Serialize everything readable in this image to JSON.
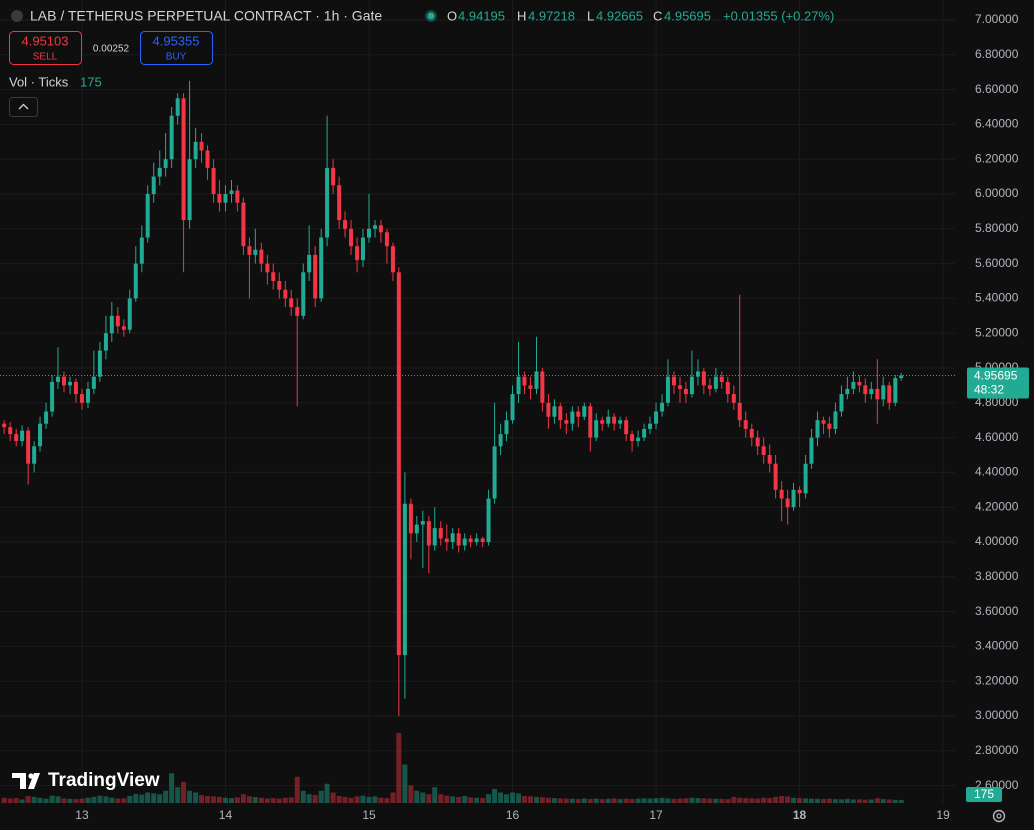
{
  "chart_data": {
    "type": "candlestick",
    "title": "LAB / TETHERUS PERPETUAL CONTRACT · 1h · Gate",
    "legend_labels": [
      "O",
      "H",
      "L",
      "C"
    ],
    "change": "+0.01355 (+0.27%)",
    "sell_price": "4.95103",
    "sell_label": "SELL",
    "spread": "0.00252",
    "buy_price": "4.95355",
    "buy_label": "BUY",
    "volume_title": "Vol · Ticks",
    "countdown": "48:32",
    "watermark": "TradingView",
    "up_color": "#22ab94",
    "down_color": "#f23645",
    "grid": true,
    "xlim": [
      12.429,
      19.083
    ],
    "xticks": [
      13,
      14,
      15,
      16,
      17,
      18,
      19
    ],
    "ylim": [
      2.5,
      7.115
    ],
    "yticks": [
      {
        "value": 2.6,
        "label": "2.60000"
      },
      {
        "value": 2.8,
        "label": "2.80000"
      },
      {
        "value": 3.0,
        "label": "3.00000"
      },
      {
        "value": 3.2,
        "label": "3.20000"
      },
      {
        "value": 3.4,
        "label": "3.40000"
      },
      {
        "value": 3.6,
        "label": "3.60000"
      },
      {
        "value": 3.8,
        "label": "3.80000"
      },
      {
        "value": 4.0,
        "label": "4.00000"
      },
      {
        "value": 4.2,
        "label": "4.20000"
      },
      {
        "value": 4.4,
        "label": "4.40000"
      },
      {
        "value": 4.6,
        "label": "4.60000"
      },
      {
        "value": 4.8,
        "label": "4.80000"
      },
      {
        "value": 5.0,
        "label": "5.00000"
      },
      {
        "value": 5.2,
        "label": "5.20000"
      },
      {
        "value": 5.4,
        "label": "5.40000"
      },
      {
        "value": 5.6,
        "label": "5.60000"
      },
      {
        "value": 5.8,
        "label": "5.80000"
      },
      {
        "value": 6.0,
        "label": "6.00000"
      },
      {
        "value": 6.2,
        "label": "6.20000"
      },
      {
        "value": 6.4,
        "label": "6.40000"
      },
      {
        "value": 6.6,
        "label": "6.60000"
      },
      {
        "value": 6.8,
        "label": "6.80000"
      },
      {
        "value": 7.0,
        "label": "7.00000"
      }
    ],
    "x": [
      12.458,
      12.5,
      12.542,
      12.583,
      12.625,
      12.667,
      12.708,
      12.75,
      12.792,
      12.833,
      12.875,
      12.917,
      12.958,
      13,
      13.042,
      13.083,
      13.125,
      13.167,
      13.208,
      13.25,
      13.292,
      13.333,
      13.375,
      13.417,
      13.458,
      13.5,
      13.542,
      13.583,
      13.625,
      13.667,
      13.708,
      13.75,
      13.792,
      13.833,
      13.875,
      13.917,
      13.958,
      14,
      14.042,
      14.083,
      14.125,
      14.167,
      14.208,
      14.25,
      14.292,
      14.333,
      14.375,
      14.417,
      14.458,
      14.5,
      14.542,
      14.583,
      14.625,
      14.667,
      14.708,
      14.75,
      14.792,
      14.833,
      14.875,
      14.917,
      14.958,
      15,
      15.042,
      15.083,
      15.125,
      15.167,
      15.208,
      15.25,
      15.292,
      15.333,
      15.375,
      15.417,
      15.458,
      15.5,
      15.542,
      15.583,
      15.625,
      15.667,
      15.708,
      15.75,
      15.792,
      15.833,
      15.875,
      15.917,
      15.958,
      16,
      16.042,
      16.083,
      16.125,
      16.167,
      16.208,
      16.25,
      16.292,
      16.333,
      16.375,
      16.417,
      16.458,
      16.5,
      16.542,
      16.583,
      16.625,
      16.667,
      16.708,
      16.75,
      16.792,
      16.833,
      16.875,
      16.917,
      16.958,
      17,
      17.042,
      17.083,
      17.125,
      17.167,
      17.208,
      17.25,
      17.292,
      17.333,
      17.375,
      17.417,
      17.458,
      17.5,
      17.542,
      17.583,
      17.625,
      17.667,
      17.708,
      17.75,
      17.792,
      17.833,
      17.875,
      17.917,
      17.958,
      18,
      18.042,
      18.083,
      18.125,
      18.167,
      18.208,
      18.25,
      18.292,
      18.333,
      18.375,
      18.417,
      18.458,
      18.5,
      18.542,
      18.583,
      18.625,
      18.667,
      18.708
    ],
    "open": [
      4.68,
      4.66,
      4.62,
      4.58,
      4.64,
      4.45,
      4.55,
      4.68,
      4.75,
      4.92,
      4.95,
      4.9,
      4.92,
      4.85,
      4.8,
      4.88,
      4.95,
      5.1,
      5.2,
      5.3,
      5.24,
      5.22,
      5.4,
      5.6,
      5.75,
      6.0,
      6.1,
      6.15,
      6.2,
      6.45,
      6.55,
      5.85,
      6.2,
      6.3,
      6.25,
      6.15,
      6.0,
      5.95,
      6.0,
      6.02,
      5.95,
      5.7,
      5.65,
      5.68,
      5.6,
      5.55,
      5.5,
      5.45,
      5.4,
      5.35,
      5.3,
      5.55,
      5.65,
      5.4,
      5.75,
      6.15,
      6.05,
      5.85,
      5.8,
      5.7,
      5.62,
      5.75,
      5.8,
      5.82,
      5.78,
      5.7,
      5.55,
      3.35,
      4.22,
      4.05,
      4.1,
      4.12,
      3.98,
      4.08,
      4.02,
      4.0,
      4.05,
      3.98,
      4.02,
      4.0,
      4.02,
      4.0,
      4.25,
      4.55,
      4.62,
      4.7,
      4.85,
      4.95,
      4.9,
      4.88,
      4.98,
      4.8,
      4.72,
      4.78,
      4.7,
      4.68,
      4.75,
      4.72,
      4.78,
      4.6,
      4.7,
      4.68,
      4.72,
      4.68,
      4.7,
      4.62,
      4.58,
      4.6,
      4.65,
      4.68,
      4.75,
      4.8,
      4.95,
      4.9,
      4.88,
      4.85,
      4.95,
      4.98,
      4.9,
      4.88,
      4.95,
      4.92,
      4.85,
      4.8,
      4.7,
      4.65,
      4.6,
      4.55,
      4.5,
      4.45,
      4.3,
      4.25,
      4.2,
      4.3,
      4.28,
      4.45,
      4.6,
      4.7,
      4.68,
      4.65,
      4.75,
      4.85,
      4.88,
      4.92,
      4.9,
      4.85,
      4.88,
      4.82,
      4.9,
      4.8,
      4.94195
    ],
    "high": [
      4.7,
      4.69,
      4.65,
      4.67,
      4.66,
      4.58,
      4.72,
      4.8,
      4.96,
      5.12,
      4.98,
      4.95,
      4.94,
      4.88,
      4.92,
      5.1,
      5.15,
      5.3,
      5.38,
      5.35,
      5.28,
      5.45,
      5.7,
      5.82,
      6.05,
      6.18,
      6.25,
      6.35,
      6.5,
      6.58,
      6.58,
      6.65,
      6.38,
      6.35,
      6.28,
      6.2,
      6.08,
      6.05,
      6.08,
      6.05,
      5.98,
      5.75,
      5.8,
      5.72,
      5.65,
      5.6,
      5.55,
      5.5,
      5.45,
      5.4,
      5.6,
      5.82,
      5.7,
      5.8,
      6.45,
      6.2,
      6.1,
      5.9,
      5.85,
      5.75,
      5.8,
      6.0,
      5.85,
      5.85,
      5.8,
      5.72,
      5.58,
      4.4,
      4.25,
      4.15,
      4.18,
      4.15,
      4.2,
      4.12,
      4.1,
      4.08,
      4.08,
      4.05,
      4.04,
      4.05,
      4.03,
      4.3,
      4.8,
      4.68,
      4.75,
      4.9,
      5.15,
      4.98,
      4.95,
      5.18,
      5.0,
      4.85,
      4.82,
      4.8,
      4.74,
      4.78,
      4.78,
      4.8,
      4.8,
      4.74,
      4.72,
      4.76,
      4.74,
      4.72,
      4.72,
      4.64,
      4.64,
      4.68,
      4.72,
      4.8,
      4.85,
      5.05,
      4.98,
      4.95,
      4.92,
      5.1,
      5.05,
      5.0,
      4.94,
      5.0,
      4.98,
      4.95,
      4.9,
      5.42,
      4.75,
      4.68,
      4.64,
      4.6,
      4.56,
      4.5,
      4.35,
      4.3,
      4.34,
      4.32,
      4.5,
      4.65,
      4.75,
      4.72,
      4.72,
      4.8,
      4.9,
      4.95,
      4.98,
      4.96,
      4.94,
      4.92,
      5.05,
      4.95,
      4.92,
      4.96,
      4.97218
    ],
    "low": [
      4.62,
      4.58,
      4.55,
      4.55,
      4.33,
      4.4,
      4.52,
      4.65,
      4.72,
      4.88,
      4.86,
      4.85,
      4.8,
      4.76,
      4.77,
      4.85,
      4.92,
      5.05,
      5.15,
      5.2,
      5.18,
      5.2,
      5.38,
      5.55,
      5.72,
      5.95,
      6.05,
      6.1,
      6.15,
      6.4,
      5.55,
      5.8,
      6.15,
      6.18,
      6.08,
      5.95,
      5.9,
      5.9,
      5.95,
      5.9,
      5.65,
      5.4,
      5.6,
      5.55,
      5.48,
      5.45,
      5.4,
      5.35,
      5.3,
      4.78,
      5.28,
      5.5,
      5.35,
      5.38,
      5.7,
      6.0,
      5.8,
      5.75,
      5.65,
      5.55,
      5.58,
      5.72,
      5.75,
      5.72,
      5.6,
      5.5,
      3.0,
      3.1,
      3.9,
      4.0,
      3.85,
      3.82,
      3.95,
      3.98,
      3.95,
      3.96,
      3.94,
      3.95,
      3.97,
      3.98,
      3.97,
      3.98,
      4.22,
      4.5,
      4.58,
      4.68,
      4.8,
      4.85,
      4.82,
      4.85,
      4.75,
      4.65,
      4.68,
      4.65,
      4.62,
      4.64,
      4.66,
      4.7,
      4.52,
      4.58,
      4.64,
      4.66,
      4.64,
      4.65,
      4.58,
      4.52,
      4.55,
      4.58,
      4.62,
      4.65,
      4.72,
      4.78,
      4.85,
      4.8,
      4.8,
      4.83,
      4.9,
      4.85,
      4.84,
      4.86,
      4.88,
      4.8,
      4.76,
      4.66,
      4.6,
      4.55,
      4.5,
      4.45,
      4.4,
      4.25,
      4.12,
      4.1,
      4.18,
      4.2,
      4.25,
      4.42,
      4.55,
      4.62,
      4.6,
      4.62,
      4.72,
      4.82,
      4.85,
      4.86,
      4.8,
      4.82,
      4.68,
      4.78,
      4.76,
      4.78,
      4.92665
    ],
    "close": [
      4.66,
      4.62,
      4.58,
      4.64,
      4.45,
      4.55,
      4.68,
      4.75,
      4.92,
      4.95,
      4.9,
      4.92,
      4.85,
      4.8,
      4.88,
      4.95,
      5.1,
      5.2,
      5.3,
      5.24,
      5.22,
      5.4,
      5.6,
      5.75,
      6.0,
      6.1,
      6.15,
      6.2,
      6.45,
      6.55,
      5.85,
      6.2,
      6.3,
      6.25,
      6.15,
      6.0,
      5.95,
      6.0,
      6.02,
      5.95,
      5.7,
      5.65,
      5.68,
      5.6,
      5.55,
      5.5,
      5.45,
      5.4,
      5.35,
      5.3,
      5.55,
      5.65,
      5.4,
      5.75,
      6.15,
      6.05,
      5.85,
      5.8,
      5.7,
      5.62,
      5.75,
      5.8,
      5.82,
      5.78,
      5.7,
      5.55,
      3.35,
      4.22,
      4.05,
      4.1,
      4.12,
      3.98,
      4.08,
      4.02,
      4.0,
      4.05,
      3.98,
      4.02,
      4.0,
      4.02,
      4.0,
      4.25,
      4.55,
      4.62,
      4.7,
      4.85,
      4.95,
      4.9,
      4.88,
      4.98,
      4.8,
      4.72,
      4.78,
      4.7,
      4.68,
      4.75,
      4.72,
      4.78,
      4.6,
      4.7,
      4.68,
      4.72,
      4.68,
      4.7,
      4.62,
      4.58,
      4.6,
      4.65,
      4.68,
      4.75,
      4.8,
      4.95,
      4.9,
      4.88,
      4.85,
      4.95,
      4.98,
      4.9,
      4.88,
      4.95,
      4.92,
      4.85,
      4.8,
      4.7,
      4.65,
      4.6,
      4.55,
      4.5,
      4.45,
      4.3,
      4.25,
      4.2,
      4.3,
      4.28,
      4.45,
      4.6,
      4.7,
      4.68,
      4.65,
      4.75,
      4.85,
      4.88,
      4.92,
      4.9,
      4.85,
      4.88,
      4.82,
      4.9,
      4.8,
      4.94195,
      4.95695
    ],
    "volume": [
      300,
      250,
      280,
      200,
      400,
      350,
      300,
      250,
      420,
      380,
      260,
      240,
      220,
      250,
      300,
      350,
      420,
      380,
      300,
      250,
      260,
      400,
      520,
      480,
      600,
      550,
      500,
      700,
      1700,
      900,
      1200,
      700,
      600,
      450,
      400,
      380,
      350,
      300,
      280,
      320,
      500,
      380,
      340,
      300,
      260,
      280,
      250,
      300,
      320,
      1500,
      700,
      500,
      450,
      700,
      1100,
      600,
      400,
      350,
      300,
      380,
      420,
      350,
      380,
      300,
      280,
      600,
      4000,
      2200,
      1000,
      700,
      600,
      500,
      900,
      500,
      420,
      380,
      350,
      400,
      320,
      300,
      280,
      500,
      800,
      600,
      500,
      600,
      550,
      400,
      380,
      350,
      330,
      300,
      280,
      260,
      250,
      240,
      220,
      260,
      230,
      250,
      220,
      240,
      260,
      220,
      240,
      230,
      250,
      270,
      260,
      280,
      300,
      260,
      240,
      250,
      270,
      300,
      280,
      260,
      250,
      240,
      230,
      220,
      350,
      300,
      280,
      260,
      250,
      300,
      280,
      350,
      400,
      380,
      300,
      280,
      260,
      250,
      240,
      230,
      250,
      220,
      210,
      230,
      200,
      210,
      190,
      200,
      280,
      220,
      200,
      180,
      175
    ]
  }
}
